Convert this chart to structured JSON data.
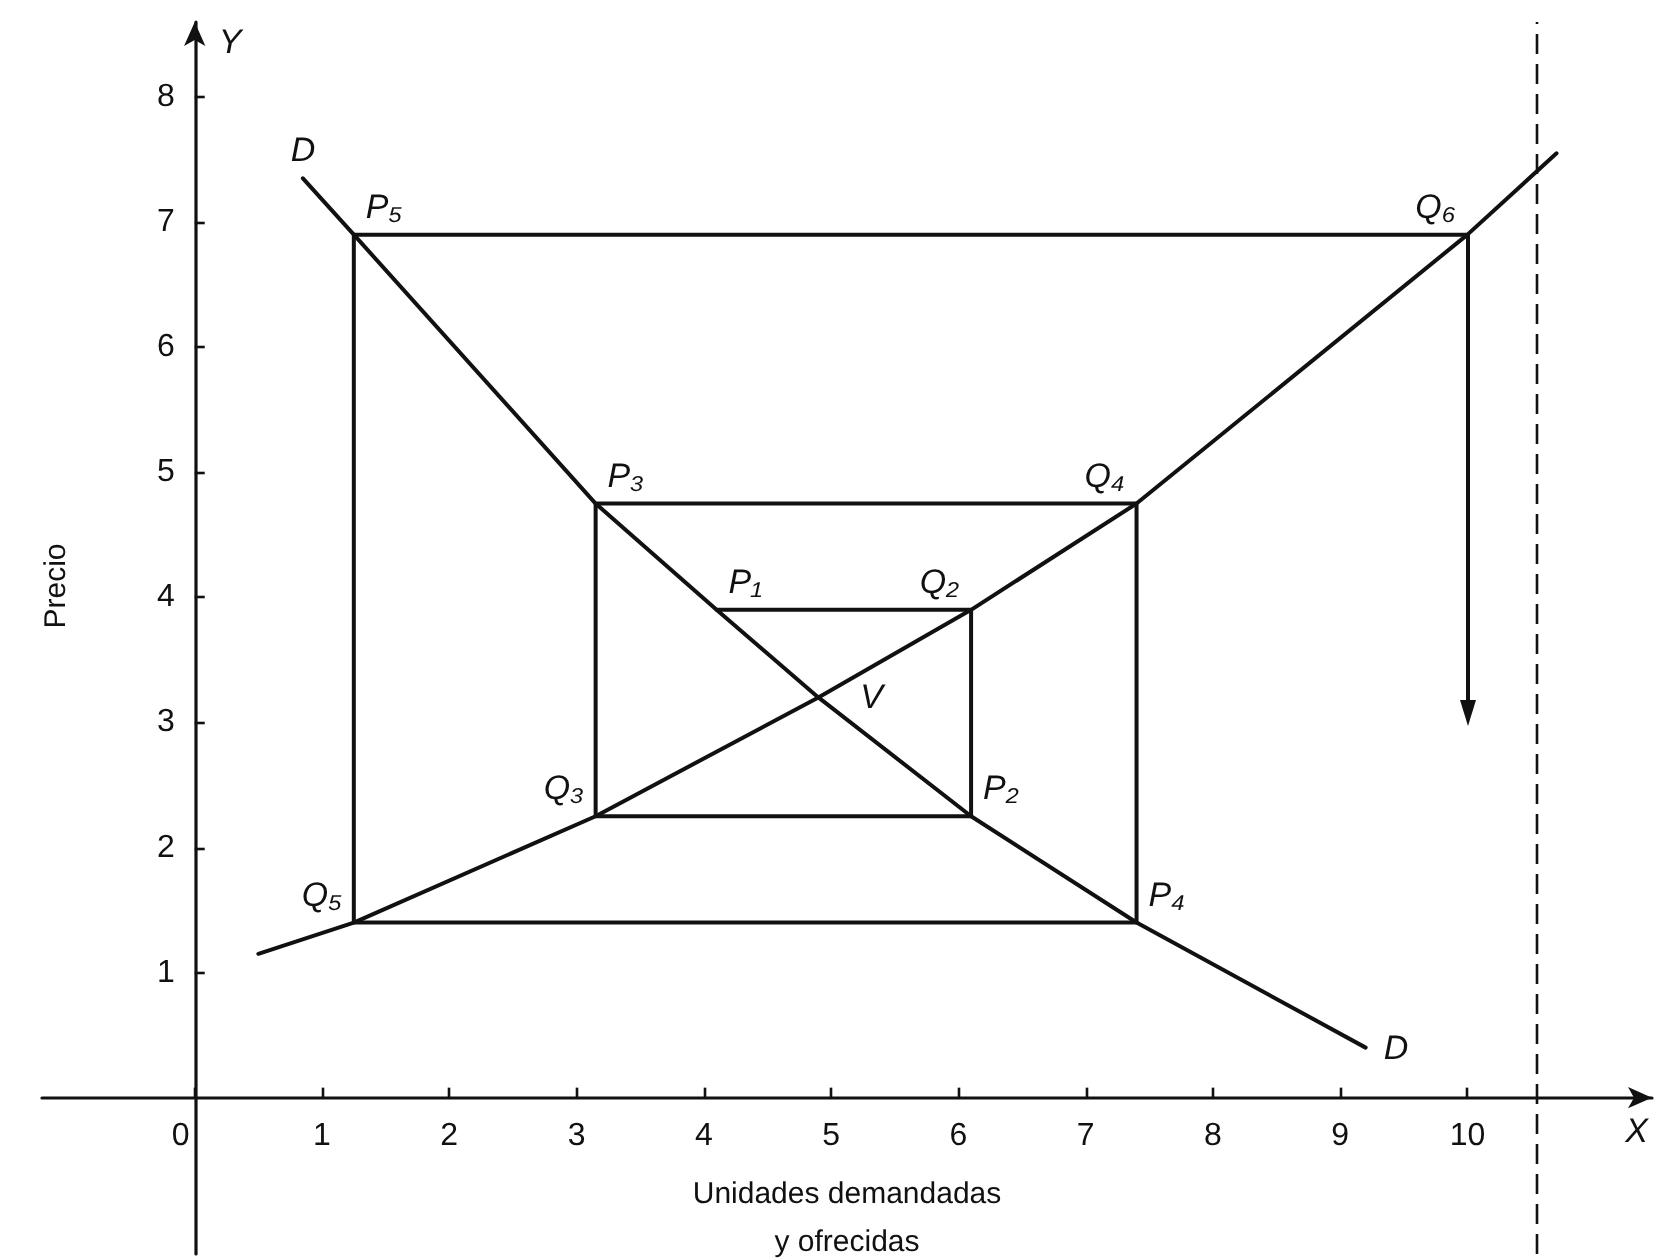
{
  "chart_data": {
    "type": "line",
    "xlabel": "Unidades demandadas\ny ofrecidas",
    "ylabel": "Precio",
    "xlim": [
      -1.2,
      11.45
    ],
    "xticks": [
      0,
      1,
      2,
      3,
      4,
      5,
      6,
      7,
      8,
      9,
      10
    ],
    "ylim": [
      -1.25,
      8.6
    ],
    "yticks": [
      1,
      2,
      3,
      4,
      5,
      6,
      7,
      8
    ],
    "grid": false,
    "legend": false,
    "marker": "none",
    "series": [
      {
        "name": "D",
        "color": "#111111",
        "x": [
          0.85,
          1.25,
          3.15,
          4.1,
          4.9,
          6.1,
          7.4,
          9.2
        ],
        "values": [
          7.35,
          6.9,
          4.75,
          3.9,
          3.2,
          2.25,
          1.4,
          0.4
        ]
      },
      {
        "color": "#111111",
        "x": [
          0.5,
          1.25,
          3.15,
          4.9,
          6.1,
          7.4,
          10,
          10.7
        ],
        "values": [
          1.15,
          1.4,
          2.25,
          3.2,
          3.9,
          4.75,
          6.9,
          7.55
        ]
      },
      {
        "color": "#111111",
        "x": [
          4.1,
          6.1,
          6.1,
          3.15,
          3.15,
          7.4,
          7.4,
          1.25,
          1.25,
          10
        ],
        "values": [
          3.9,
          3.9,
          2.25,
          2.25,
          4.75,
          4.75,
          1.4,
          1.4,
          6.9,
          6.9
        ]
      }
    ],
    "ref_lines": [
      {
        "axis": "x",
        "value": 10.55,
        "line_style": "dashed",
        "color": "#111111"
      }
    ],
    "annotations": [
      {
        "text": "P₅",
        "x": 1.25,
        "y": 6.9
      },
      {
        "text": "Q₆",
        "x": 10,
        "y": 6.9
      },
      {
        "text": "P₃",
        "x": 3.15,
        "y": 4.75
      },
      {
        "text": "Q₄",
        "x": 7.4,
        "y": 4.75
      },
      {
        "text": "P₁",
        "x": 4.1,
        "y": 3.9
      },
      {
        "text": "Q₂",
        "x": 6.1,
        "y": 3.9
      },
      {
        "text": "V",
        "x": 4.9,
        "y": 3.2
      },
      {
        "text": "Q₃",
        "x": 3.15,
        "y": 2.25
      },
      {
        "text": "P₂",
        "x": 6.1,
        "y": 2.25
      },
      {
        "text": "Q₅",
        "x": 1.25,
        "y": 1.4
      },
      {
        "text": "P₄",
        "x": 7.4,
        "y": 1.4
      },
      "X",
      "Y"
    ]
  }
}
